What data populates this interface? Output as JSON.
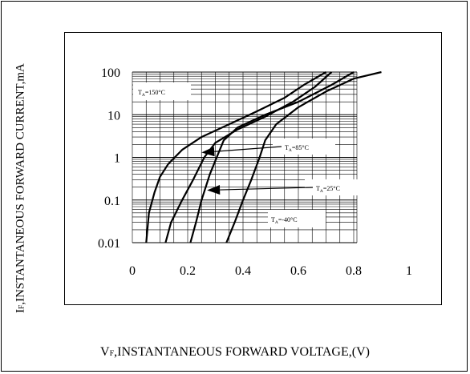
{
  "chart_data": {
    "type": "line",
    "xlabel_prefix": "V",
    "xlabel_sub": "F",
    "xlabel_rest": ",INSTANTANEOUS FORWARD VOLTAGE,(V)",
    "ylabel_prefix": "I",
    "ylabel_sub": "F",
    "ylabel_rest": ",INSTANTANEOUS FORWARD CURRENT,mA",
    "xlim": [
      0,
      1
    ],
    "ylim": [
      0.01,
      100
    ],
    "yscale": "log",
    "grid": true,
    "x_ticks": [
      "0",
      "0.2",
      "0.4",
      "0.6",
      "0.8",
      "1"
    ],
    "y_ticks": [
      "0.01",
      "0.1",
      "1",
      "10",
      "100"
    ],
    "x_tick_values": [
      0,
      0.2,
      0.4,
      0.6,
      0.8,
      1
    ],
    "y_tick_values": [
      0.01,
      0.1,
      1,
      10,
      100
    ],
    "series": [
      {
        "name": "TA=150°C",
        "points": [
          [
            0.05,
            0.01
          ],
          [
            0.06,
            0.05
          ],
          [
            0.08,
            0.15
          ],
          [
            0.1,
            0.35
          ],
          [
            0.13,
            0.7
          ],
          [
            0.18,
            1.5
          ],
          [
            0.25,
            3.0
          ],
          [
            0.35,
            6.0
          ],
          [
            0.45,
            12
          ],
          [
            0.55,
            25
          ],
          [
            0.62,
            50
          ],
          [
            0.7,
            100
          ]
        ]
      },
      {
        "name": "TA=85°C",
        "points": [
          [
            0.12,
            0.01
          ],
          [
            0.14,
            0.03
          ],
          [
            0.18,
            0.1
          ],
          [
            0.22,
            0.3
          ],
          [
            0.26,
            1.0
          ],
          [
            0.3,
            2.2
          ],
          [
            0.38,
            4.5
          ],
          [
            0.48,
            9
          ],
          [
            0.58,
            20
          ],
          [
            0.66,
            45
          ],
          [
            0.72,
            100
          ]
        ]
      },
      {
        "name": "TA=25°C",
        "points": [
          [
            0.21,
            0.01
          ],
          [
            0.23,
            0.03
          ],
          [
            0.25,
            0.1
          ],
          [
            0.28,
            0.4
          ],
          [
            0.31,
            1.2
          ],
          [
            0.33,
            2.5
          ],
          [
            0.38,
            5
          ],
          [
            0.48,
            10
          ],
          [
            0.6,
            20
          ],
          [
            0.72,
            50
          ],
          [
            0.8,
            100
          ]
        ]
      },
      {
        "name": "TA=-40°C",
        "points": [
          [
            0.34,
            0.01
          ],
          [
            0.37,
            0.03
          ],
          [
            0.4,
            0.1
          ],
          [
            0.43,
            0.3
          ],
          [
            0.46,
            1.0
          ],
          [
            0.48,
            2.5
          ],
          [
            0.52,
            6
          ],
          [
            0.6,
            15
          ],
          [
            0.7,
            35
          ],
          [
            0.8,
            70
          ],
          [
            0.9,
            100
          ]
        ]
      }
    ],
    "annotations": [
      {
        "prefix": "T",
        "sub": "A",
        "rest": "=150°C",
        "arrow": false
      },
      {
        "prefix": "T",
        "sub": "A",
        "rest": "=85°C",
        "arrow": true,
        "arrow_to": [
          0.25,
          1.3
        ]
      },
      {
        "prefix": "T",
        "sub": "A",
        "rest": "=25°C",
        "arrow": true,
        "arrow_to": [
          0.27,
          0.17
        ]
      },
      {
        "prefix": "T",
        "sub": "A",
        "rest": "=-40°C",
        "arrow": false
      }
    ]
  }
}
